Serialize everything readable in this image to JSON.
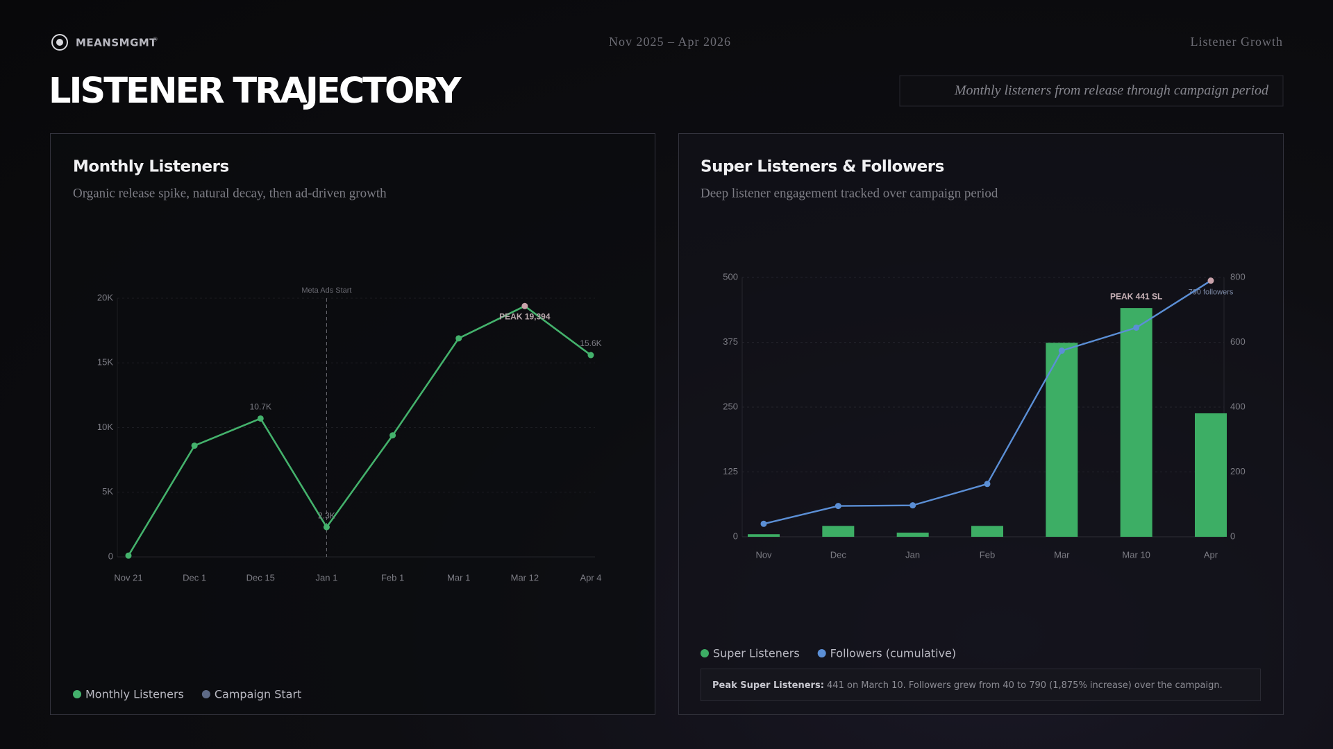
{
  "header": {
    "brand": "MEANSMGMT",
    "brand_mark": "®",
    "period": "Nov 2025 – Apr 2026",
    "section": "Listener Growth",
    "title": "LISTENER TRAJECTORY",
    "subtitle": "Monthly listeners from release through campaign period"
  },
  "chart_data": [
    {
      "type": "line",
      "title": "Monthly Listeners",
      "subtitle": "Organic release spike, natural decay, then ad-driven growth",
      "categories": [
        "Nov 21",
        "Dec 1",
        "Dec 15",
        "Jan 1",
        "Feb 1",
        "Mar 1",
        "Mar 12",
        "Apr 4"
      ],
      "series": [
        {
          "name": "Monthly Listeners",
          "color": "#44b26c",
          "values": [
            100,
            8600,
            10700,
            2300,
            9400,
            16900,
            19394,
            15600
          ],
          "value_labels": [
            null,
            null,
            "10.7K",
            "2.3K",
            null,
            null,
            "PEAK 19,394",
            "15.6K"
          ],
          "marker_colors": [
            "#44b26c",
            "#44b26c",
            "#44b26c",
            "#44b26c",
            "#44b26c",
            "#44b26c",
            "#c9a2aa",
            "#44b26c"
          ]
        }
      ],
      "annotation": {
        "text": "Meta Ads Start",
        "category": "Jan 1",
        "legend": "Campaign Start",
        "color": "#5d6a86"
      },
      "ylim": [
        0,
        20000
      ],
      "yticks": [
        0,
        {
          "value": 5000,
          "label": "5K"
        },
        {
          "value": 10000,
          "label": "10K"
        },
        {
          "value": 15000,
          "label": "15K"
        },
        {
          "value": 20000,
          "label": "20K"
        }
      ],
      "grid": true
    },
    {
      "type": "combo",
      "title": "Super Listeners & Followers",
      "subtitle": "Deep listener engagement tracked over campaign period",
      "categories": [
        "Nov",
        "Dec",
        "Jan",
        "Feb",
        "Mar",
        "Mar 10",
        "Apr"
      ],
      "series": [
        {
          "name": "Super Listeners",
          "type": "bar",
          "color": "#3dae65",
          "values": [
            5,
            21,
            8,
            21,
            374,
            441,
            238
          ],
          "value_labels": [
            null,
            null,
            null,
            null,
            null,
            "PEAK 441 SL",
            null
          ]
        },
        {
          "name": "Followers (cumulative)",
          "type": "line",
          "axis": "y2",
          "color": "#5b8fd6",
          "values": [
            40,
            95,
            97,
            163,
            574,
            645,
            790
          ],
          "value_labels": [
            null,
            null,
            null,
            null,
            null,
            null,
            "790 followers"
          ],
          "marker_colors": [
            "#5b8fd6",
            "#5b8fd6",
            "#5b8fd6",
            "#5b8fd6",
            "#5b8fd6",
            "#5b8fd6",
            "#c9a2aa"
          ]
        }
      ],
      "ylim": [
        0,
        500
      ],
      "yticks": [
        0,
        125,
        250,
        375,
        500
      ],
      "y2lim": [
        0,
        800
      ],
      "y2ticks": [
        0,
        200,
        400,
        600,
        800
      ],
      "grid": true,
      "note_label": "Peak Super Listeners:",
      "note_text": " 441 on March 10. Followers grew from 40 to 790 (1,875% increase) over the campaign."
    }
  ]
}
